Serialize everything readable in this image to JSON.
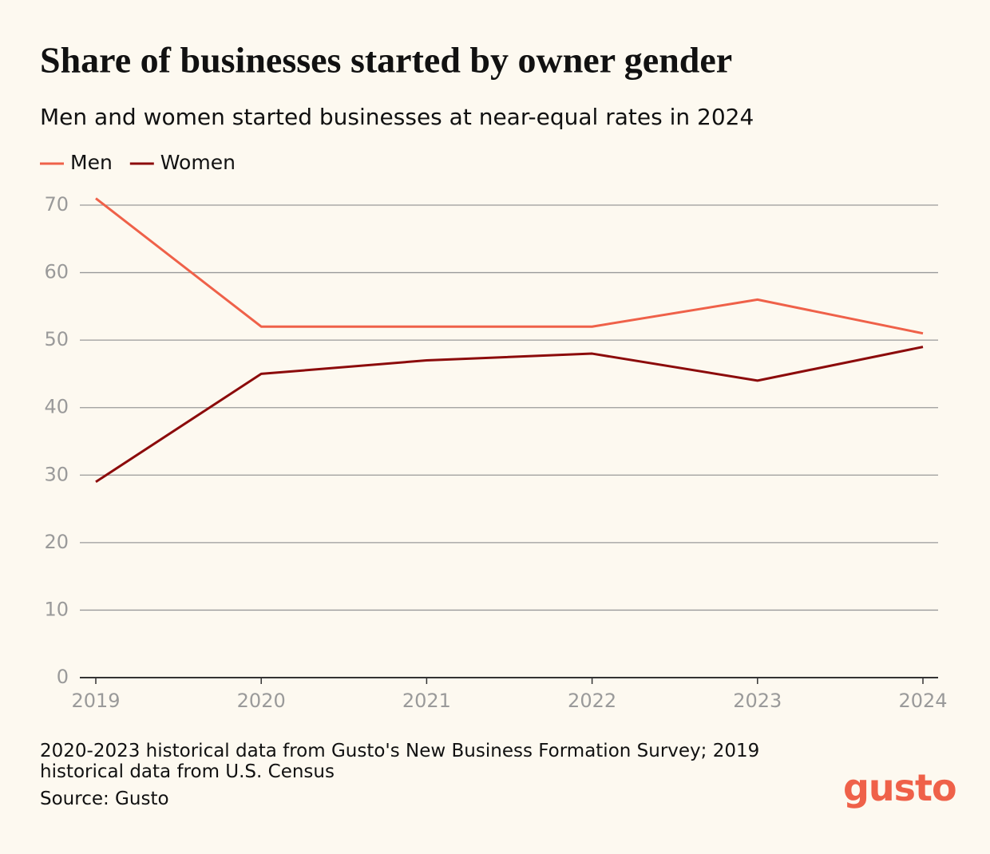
{
  "chart_data": {
    "type": "line",
    "title": "Share of businesses started by owner gender",
    "subtitle": "Men and women started businesses at near-equal rates in 2024",
    "x": [
      2019,
      2020,
      2021,
      2022,
      2023,
      2024
    ],
    "xlim": [
      2019,
      2024
    ],
    "xticks": [
      2019,
      2020,
      2021,
      2022,
      2023,
      2024
    ],
    "ylim": [
      0,
      70
    ],
    "yticks": [
      0,
      10,
      20,
      30,
      40,
      50,
      60,
      70
    ],
    "grid": true,
    "legend": "top-left",
    "series": [
      {
        "name": "Men",
        "color": "#ef6149",
        "values": [
          71,
          52,
          52,
          52,
          56,
          51
        ]
      },
      {
        "name": "Women",
        "color": "#8c0b0b",
        "values": [
          29,
          45,
          47,
          48,
          44,
          49
        ]
      }
    ],
    "note": "2020-2023 historical data from Gusto's New Business Formation Survey; 2019 historical data from U.S. Census",
    "source": "Source: Gusto",
    "logo": "gusto"
  }
}
